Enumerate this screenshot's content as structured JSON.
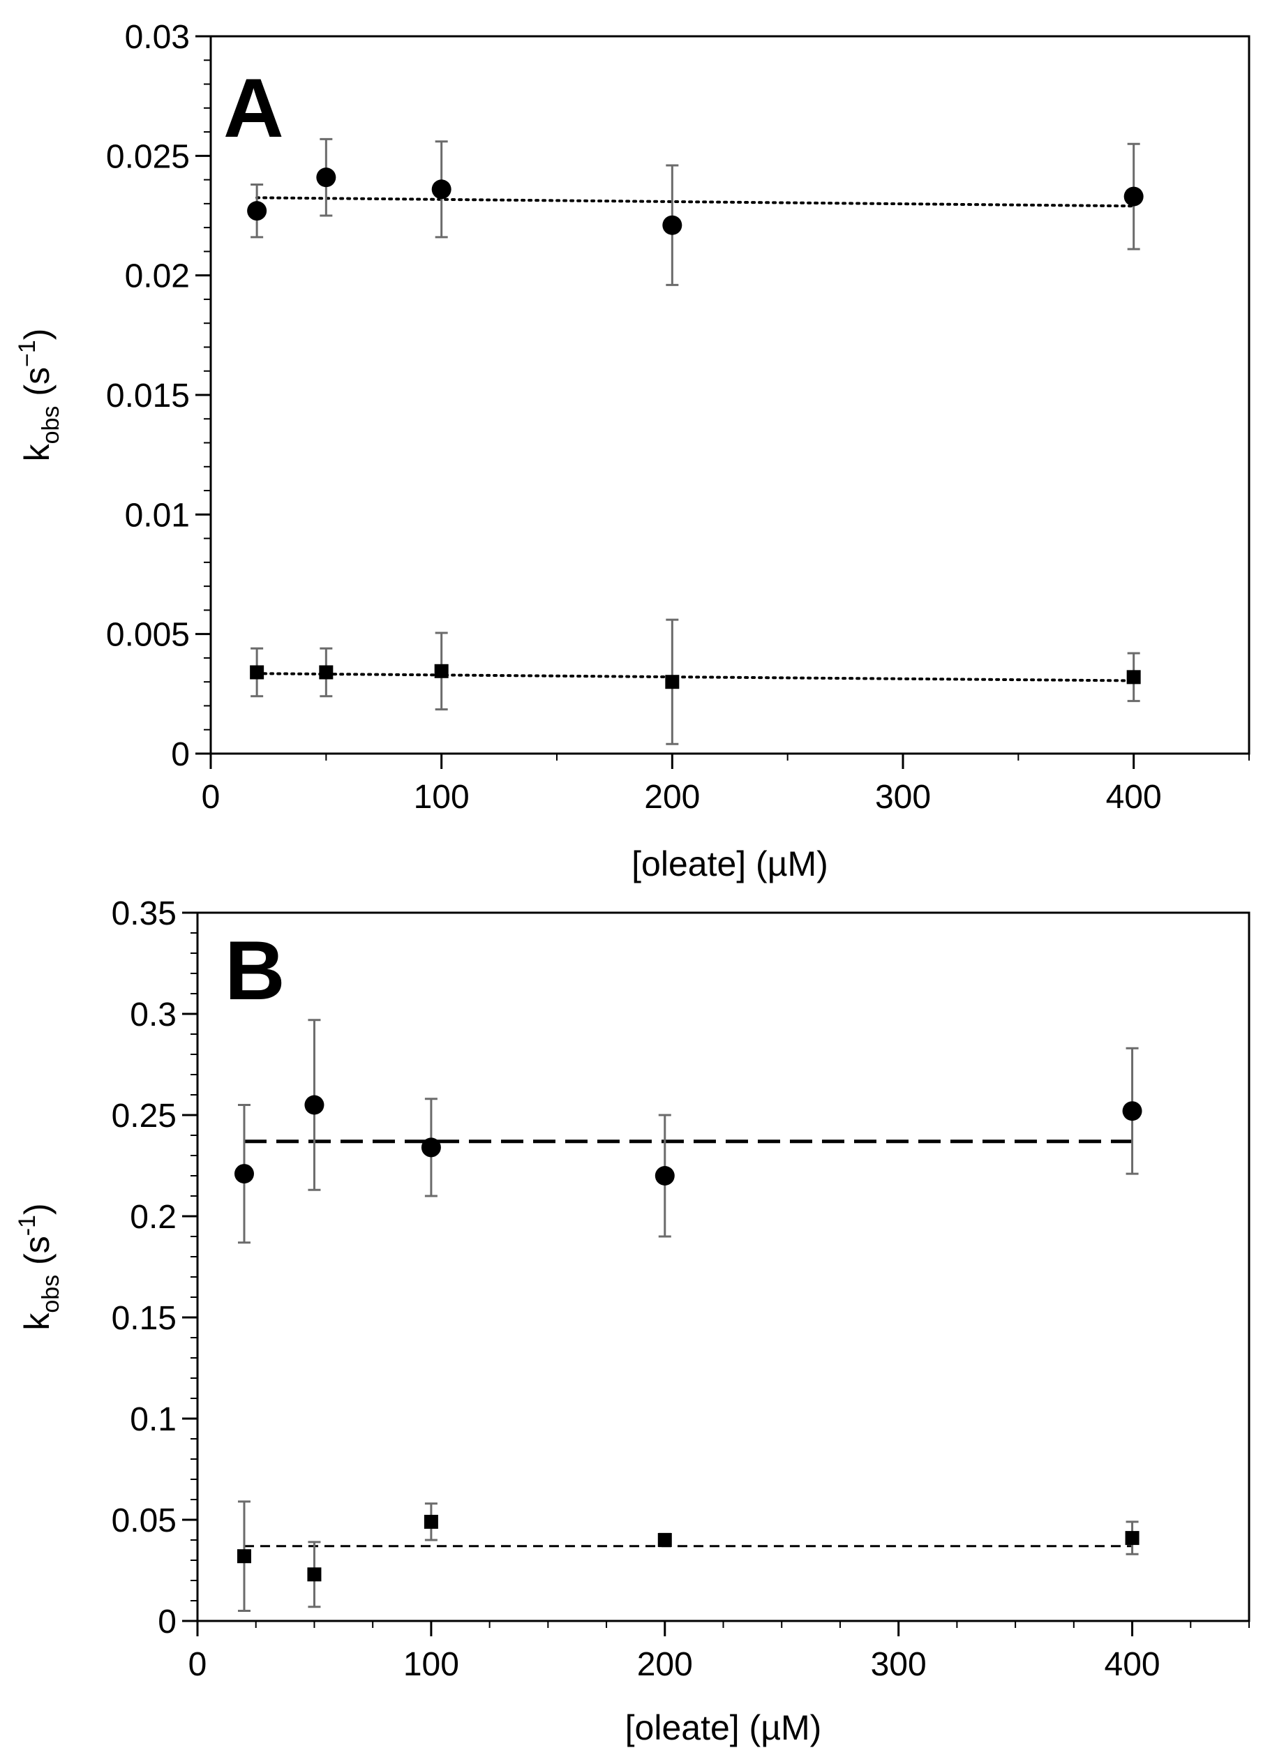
{
  "chart_data": [
    {
      "type": "scatter",
      "panel": "A",
      "xlabel": "[oleate] (µM)",
      "ylabel": {
        "main": "k",
        "sub": "obs",
        "unit_open": " (s",
        "sup": "−1",
        "unit_close": ")"
      },
      "xlim": [
        0,
        450
      ],
      "ylim": [
        0,
        0.03
      ],
      "xticks": [
        0,
        100,
        200,
        300,
        400
      ],
      "xtick_labels": [
        "0",
        "100",
        "200",
        "300",
        "400"
      ],
      "yticks": [
        0,
        0.005,
        0.01,
        0.015,
        0.02,
        0.025,
        0.03
      ],
      "ytick_labels": [
        "0",
        "0.005",
        "0.01",
        "0.015",
        "0.02",
        "0.025",
        "0.03"
      ],
      "x_minor_step": 50,
      "y_minor_step": 0.001,
      "series": [
        {
          "name": "circles",
          "marker": "circle",
          "x": [
            20,
            50,
            100,
            200,
            400
          ],
          "y": [
            0.0227,
            0.0241,
            0.0236,
            0.0221,
            0.0233
          ],
          "yerr": [
            0.0011,
            0.0016,
            0.002,
            0.0025,
            0.0022
          ],
          "fit": {
            "x": [
              20,
              400
            ],
            "y": [
              0.02325,
              0.0229
            ],
            "style": "dotted"
          }
        },
        {
          "name": "squares",
          "marker": "square",
          "x": [
            20,
            50,
            100,
            200,
            400
          ],
          "y": [
            0.0034,
            0.0034,
            0.00345,
            0.003,
            0.0032
          ],
          "yerr": [
            0.001,
            0.001,
            0.0016,
            0.0026,
            0.001
          ],
          "fit": {
            "x": [
              20,
              400
            ],
            "y": [
              0.00335,
              0.00305
            ],
            "style": "dotted"
          }
        }
      ]
    },
    {
      "type": "scatter",
      "panel": "B",
      "xlabel": "[oleate] (µM)",
      "ylabel": {
        "main": "k",
        "sub": "obs",
        "unit_open": " (s",
        "sup": "-1",
        "unit_close": ")"
      },
      "xlim": [
        0,
        450
      ],
      "ylim": [
        0,
        0.35
      ],
      "xticks": [
        0,
        100,
        200,
        300,
        400
      ],
      "xtick_labels": [
        "0",
        "100",
        "200",
        "300",
        "400"
      ],
      "yticks": [
        0,
        0.05,
        0.1,
        0.15,
        0.2,
        0.25,
        0.3,
        0.35
      ],
      "ytick_labels": [
        "0",
        "0.05",
        "0.1",
        "0.15",
        "0.2",
        "0.25",
        "0.3",
        "0.35"
      ],
      "x_minor_step": 25,
      "y_minor_step": 0.01,
      "series": [
        {
          "name": "circles",
          "marker": "circle",
          "x": [
            20,
            50,
            100,
            200,
            400
          ],
          "y": [
            0.221,
            0.255,
            0.234,
            0.22,
            0.252
          ],
          "yerr": [
            0.034,
            0.042,
            0.024,
            0.03,
            0.031
          ],
          "fit": {
            "x": [
              20,
              400
            ],
            "y": [
              0.237,
              0.237
            ],
            "style": "long-dashed"
          }
        },
        {
          "name": "squares",
          "marker": "square",
          "x": [
            20,
            50,
            100,
            200,
            400
          ],
          "y": [
            0.032,
            0.023,
            0.049,
            0.04,
            0.041
          ],
          "yerr": [
            0.027,
            0.016,
            0.009,
            0.003,
            0.008
          ],
          "fit": {
            "x": [
              20,
              400
            ],
            "y": [
              0.037,
              0.037
            ],
            "style": "short-dashed"
          }
        }
      ]
    }
  ]
}
